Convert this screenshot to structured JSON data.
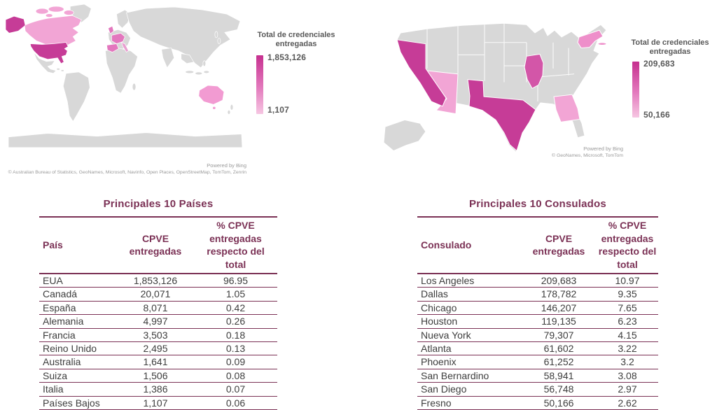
{
  "colors": {
    "accent_plum": "#7B3155",
    "map_high": "#C63C97",
    "map_medium": "#D356A8",
    "map_medium_light": "#EE8FCA",
    "map_low": "#F2A5D5",
    "map_europe_cluster": "#E377BE",
    "map_nodata_gray": "#D8D8D8",
    "legend_gradient_top": "#C6308F",
    "legend_gradient_bottom": "#F6C6E2",
    "body_text": "#3D3D3D",
    "legend_text": "#595959",
    "attribution_text": "#9A9A9A"
  },
  "left_map": {
    "legend_title": "Total de credenciales entregadas",
    "legend_max": "1,853,126",
    "legend_min": "1,107",
    "attribution_line1": "Powered by Bing",
    "attribution_line2": "© Australian Bureau of Statistics, GeoNames, Microsoft, Navinfo, Open Places, OpenStreetMap, TomTom, Zenrin"
  },
  "right_map": {
    "legend_title": "Total de credenciales entregadas",
    "legend_max": "209,683",
    "legend_min": "50,166",
    "attribution_line1": "Powered by Bing",
    "attribution_line2": "© GeoNames, Microsoft, TomTom"
  },
  "countries_table": {
    "title": "Principales 10 Países",
    "columns": [
      "País",
      "CPVE entregadas",
      "% CPVE entregadas respecto del total"
    ],
    "rows": [
      [
        "EUA",
        "1,853,126",
        "96.95"
      ],
      [
        "Canadá",
        "20,071",
        "1.05"
      ],
      [
        "España",
        "8,071",
        "0.42"
      ],
      [
        "Alemania",
        "4,997",
        "0.26"
      ],
      [
        "Francia",
        "3,503",
        "0.18"
      ],
      [
        "Reino Unido",
        "2,495",
        "0.13"
      ],
      [
        "Australia",
        "1,641",
        "0.09"
      ],
      [
        "Suiza",
        "1,506",
        "0.08"
      ],
      [
        "Italia",
        "1,386",
        "0.07"
      ],
      [
        "Países Bajos",
        "1,107",
        "0.06"
      ]
    ]
  },
  "consulates_table": {
    "title": "Principales 10 Consulados",
    "columns": [
      "Consulado",
      "CPVE entregadas",
      "% CPVE entregadas respecto del total"
    ],
    "rows": [
      [
        "Los Angeles",
        "209,683",
        "10.97"
      ],
      [
        "Dallas",
        "178,782",
        "9.35"
      ],
      [
        "Chicago",
        "146,207",
        "7.65"
      ],
      [
        "Houston",
        "119,135",
        "6.23"
      ],
      [
        "Nueva York",
        "79,307",
        "4.15"
      ],
      [
        "Atlanta",
        "61,602",
        "3.22"
      ],
      [
        "Phoenix",
        "61,252",
        "3.2"
      ],
      [
        "San Bernardino",
        "58,941",
        "3.08"
      ],
      [
        "San Diego",
        "56,748",
        "2.97"
      ],
      [
        "Fresno",
        "50,166",
        "2.62"
      ]
    ]
  },
  "chart_data": [
    {
      "type": "choropleth",
      "region_scope": "world",
      "title": "Total de credenciales entregadas",
      "legend_position": "right",
      "color_scale": {
        "min_value": 1107,
        "max_value": 1853126,
        "min_color": "#F6C6E2",
        "max_color": "#C6308F"
      },
      "data_points": [
        {
          "name": "EUA",
          "value": 1853126
        },
        {
          "name": "Canadá",
          "value": 20071
        },
        {
          "name": "España",
          "value": 8071
        },
        {
          "name": "Alemania",
          "value": 4997
        },
        {
          "name": "Francia",
          "value": 3503
        },
        {
          "name": "Reino Unido",
          "value": 2495
        },
        {
          "name": "Australia",
          "value": 1641
        },
        {
          "name": "Suiza",
          "value": 1506
        },
        {
          "name": "Italia",
          "value": 1386
        },
        {
          "name": "Países Bajos",
          "value": 1107
        }
      ],
      "attribution": [
        "Powered by Bing",
        "© Australian Bureau of Statistics, GeoNames, Microsoft, Navinfo, Open Places, OpenStreetMap, TomTom, Zenrin"
      ]
    },
    {
      "type": "choropleth",
      "region_scope": "united-states",
      "title": "Total de credenciales entregadas",
      "legend_position": "right",
      "color_scale": {
        "min_value": 50166,
        "max_value": 209683,
        "min_color": "#F6C6E2",
        "max_color": "#C6308F"
      },
      "highlighted_states": [
        {
          "name": "California",
          "intensity": "high"
        },
        {
          "name": "Texas",
          "intensity": "high"
        },
        {
          "name": "Illinois",
          "intensity": "medium"
        },
        {
          "name": "Nueva York",
          "intensity": "medium-light"
        },
        {
          "name": "Arizona",
          "intensity": "low"
        },
        {
          "name": "Georgia",
          "intensity": "low"
        }
      ],
      "attribution": [
        "Powered by Bing",
        "© GeoNames, Microsoft, TomTom"
      ]
    },
    {
      "type": "table",
      "title": "Principales 10 Países",
      "columns": [
        "País",
        "CPVE entregadas",
        "% CPVE entregadas respecto del total"
      ],
      "rows": [
        [
          "EUA",
          1853126,
          96.95
        ],
        [
          "Canadá",
          20071,
          1.05
        ],
        [
          "España",
          8071,
          0.42
        ],
        [
          "Alemania",
          4997,
          0.26
        ],
        [
          "Francia",
          3503,
          0.18
        ],
        [
          "Reino Unido",
          2495,
          0.13
        ],
        [
          "Australia",
          1641,
          0.09
        ],
        [
          "Suiza",
          1506,
          0.08
        ],
        [
          "Italia",
          1386,
          0.07
        ],
        [
          "Países Bajos",
          1107,
          0.06
        ]
      ]
    },
    {
      "type": "table",
      "title": "Principales 10 Consulados",
      "columns": [
        "Consulado",
        "CPVE entregadas",
        "% CPVE entregadas respecto del total"
      ],
      "rows": [
        [
          "Los Angeles",
          209683,
          10.97
        ],
        [
          "Dallas",
          178782,
          9.35
        ],
        [
          "Chicago",
          146207,
          7.65
        ],
        [
          "Houston",
          119135,
          6.23
        ],
        [
          "Nueva York",
          79307,
          4.15
        ],
        [
          "Atlanta",
          61602,
          3.22
        ],
        [
          "Phoenix",
          61252,
          3.2
        ],
        [
          "San Bernardino",
          58941,
          3.08
        ],
        [
          "San Diego",
          56748,
          2.97
        ],
        [
          "Fresno",
          50166,
          2.62
        ]
      ]
    }
  ]
}
